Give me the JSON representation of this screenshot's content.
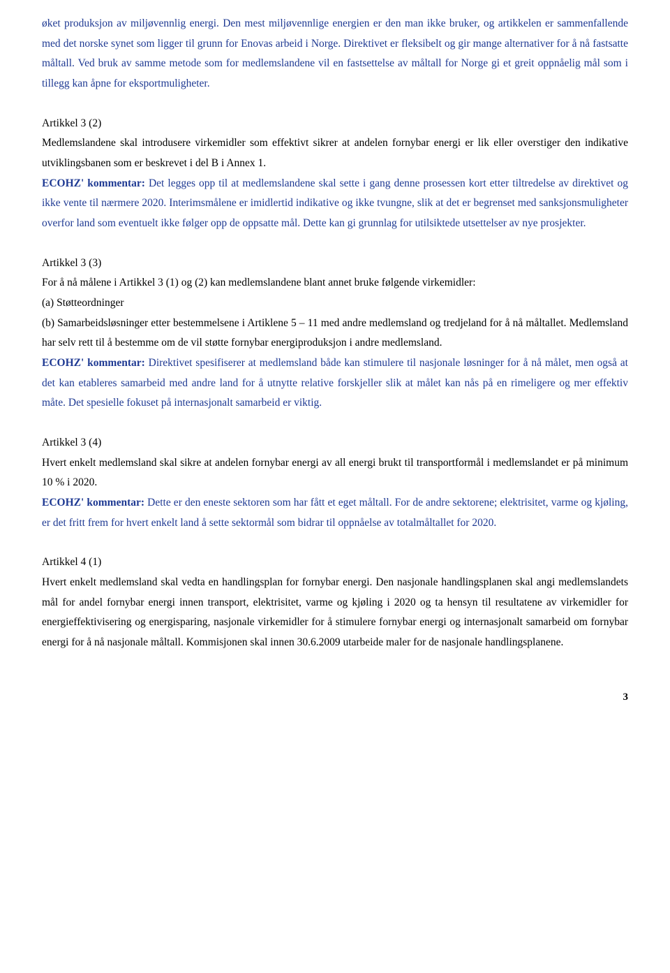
{
  "p0": "øket produksjon av miljøvennlig energi. Den mest miljøvennlige energien er den man ikke bruker, og artikkelen er sammenfallende med det norske synet som ligger til grunn for Enovas arbeid i Norge. Direktivet er fleksibelt og gir mange alternativer for å nå fastsatte måltall. Ved bruk av samme metode som for medlemslandene vil en fastsettelse av måltall for Norge gi et greit oppnåelig mål som i tillegg kan åpne for eksportmuligheter.",
  "a3_2": {
    "title": "Artikkel 3 (2)",
    "body": "Medlemslandene skal introdusere virkemidler som effektivt sikrer at andelen fornybar energi er lik eller overstiger den indikative utviklingsbanen som er beskrevet i del B i Annex 1.",
    "label": "ECOHZ' kommentar: ",
    "comment": "Det legges opp til at medlemslandene skal sette i gang denne prosessen kort etter tiltredelse av direktivet og ikke vente til nærmere 2020. Interimsmålene er imidlertid indikative og ikke tvungne, slik at det er begrenset med sanksjonsmuligheter overfor land som eventuelt ikke følger opp de oppsatte mål. Dette kan gi grunnlag for utilsiktede utsettelser av nye prosjekter."
  },
  "a3_3": {
    "title": "Artikkel 3 (3)",
    "body1": "For å nå målene i Artikkel 3 (1) og (2) kan medlemslandene blant annet bruke følgende virkemidler:",
    "a": "(a) Støtteordninger",
    "b": "(b) Samarbeidsløsninger etter bestemmelsene i Artiklene 5 – 11 med andre medlemsland og tredjeland for å nå måltallet. Medlemsland har selv rett til å bestemme om de vil støtte fornybar energiproduksjon i andre medlemsland.",
    "label": "ECOHZ' kommentar: ",
    "comment": "Direktivet spesifiserer at medlemsland både kan stimulere til nasjonale løsninger for å nå målet, men også at det kan etableres samarbeid med andre land for å utnytte relative forskjeller slik at målet kan nås på en rimeligere og mer effektiv måte. Det spesielle fokuset på internasjonalt samarbeid er viktig."
  },
  "a3_4": {
    "title": "Artikkel 3 (4)",
    "body": "Hvert enkelt medlemsland skal sikre at andelen fornybar energi av all energi brukt til transportformål i medlemslandet er på minimum 10 % i 2020.",
    "label": "ECOHZ' kommentar: ",
    "comment": "Dette er den eneste sektoren som har fått et eget måltall. For de andre sektorene; elektrisitet, varme og kjøling, er det fritt frem for hvert enkelt land å sette sektormål som bidrar til oppnåelse av totalmåltallet for 2020."
  },
  "a4_1": {
    "title": "Artikkel 4 (1)",
    "body": "Hvert enkelt medlemsland skal vedta en handlingsplan for fornybar energi. Den nasjonale handlingsplanen skal angi medlemslandets mål for andel fornybar energi innen transport, elektrisitet, varme og kjøling i 2020 og ta hensyn til resultatene av virkemidler for energieffektivisering og energisparing, nasjonale virkemidler for å stimulere fornybar energi og internasjonalt samarbeid om fornybar energi for å nå nasjonale måltall. Kommisjonen skal innen 30.6.2009 utarbeide maler for de nasjonale handlingsplanene."
  },
  "page": "3"
}
